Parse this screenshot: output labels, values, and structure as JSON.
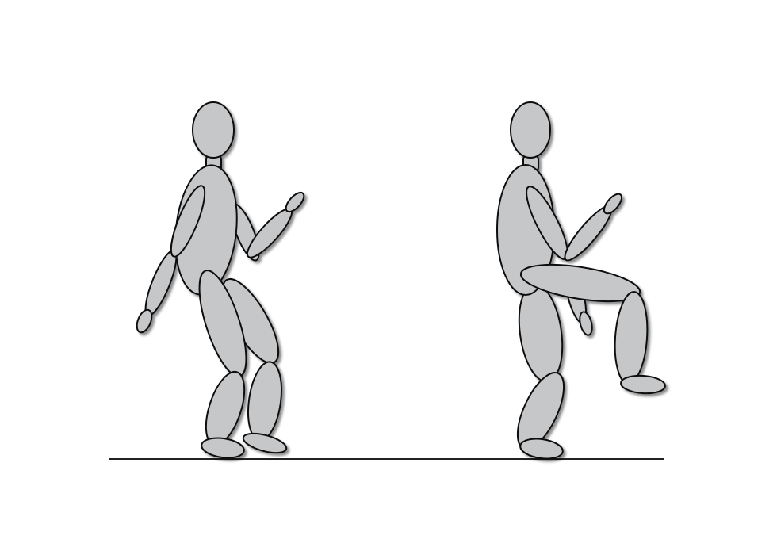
{
  "figure": {
    "colors": {
      "background": "#ffffff",
      "limb_fill": "#c6c7c9",
      "outline": "#111111",
      "shadow": "#777777",
      "ground": "#222222"
    },
    "figures": [
      {
        "name": "standing-figure",
        "pose": "standing"
      },
      {
        "name": "knee-raise-figure",
        "pose": "raised-knee"
      }
    ]
  }
}
